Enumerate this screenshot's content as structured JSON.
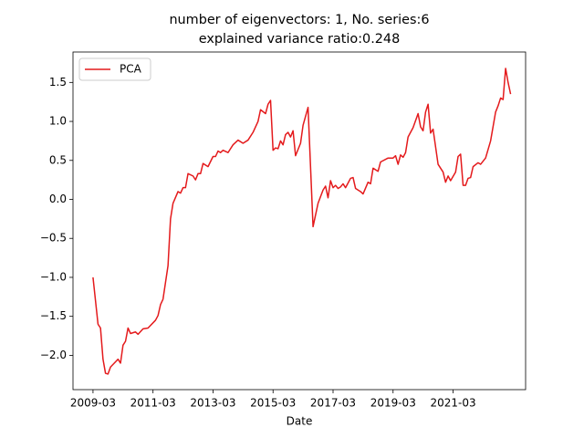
{
  "chart_data": {
    "type": "line",
    "title": [
      "number of eigenvectors: 1, No. series:6",
      "explained variance ratio:0.248"
    ],
    "xlabel": "Date",
    "legend": "upper left",
    "x": [
      "2009-03",
      "2009-05",
      "2009-06",
      "2009-07",
      "2009-08",
      "2009-09",
      "2009-10",
      "2010-01",
      "2010-02",
      "2010-03",
      "2010-04",
      "2010-05",
      "2010-06",
      "2010-08",
      "2010-09",
      "2010-11",
      "2011-01",
      "2011-04",
      "2011-05",
      "2011-06",
      "2011-07",
      "2011-09",
      "2011-10",
      "2011-11",
      "2012-01",
      "2012-02",
      "2012-03",
      "2012-04",
      "2012-05",
      "2012-07",
      "2012-08",
      "2012-09",
      "2012-10",
      "2012-11",
      "2013-01",
      "2013-03",
      "2013-04",
      "2013-05",
      "2013-06",
      "2013-07",
      "2013-09",
      "2013-11",
      "2014-01",
      "2014-03",
      "2014-05",
      "2014-07",
      "2014-09",
      "2014-10",
      "2014-12",
      "2015-01",
      "2015-02",
      "2015-03",
      "2015-04",
      "2015-05",
      "2015-06",
      "2015-07",
      "2015-08",
      "2015-09",
      "2015-10",
      "2015-11",
      "2015-12",
      "2016-02",
      "2016-03",
      "2016-05",
      "2016-07",
      "2016-09",
      "2016-11",
      "2016-12",
      "2017-01",
      "2017-02",
      "2017-03",
      "2017-04",
      "2017-05",
      "2017-06",
      "2017-07",
      "2017-08",
      "2017-10",
      "2017-11",
      "2017-12",
      "2018-02",
      "2018-03",
      "2018-05",
      "2018-06",
      "2018-07",
      "2018-09",
      "2018-10",
      "2019-01",
      "2019-03",
      "2019-04",
      "2019-05",
      "2019-06",
      "2019-07",
      "2019-08",
      "2019-09",
      "2019-11",
      "2020-01",
      "2020-02",
      "2020-03",
      "2020-04",
      "2020-05",
      "2020-06",
      "2020-07",
      "2020-09",
      "2020-11",
      "2020-12",
      "2021-01",
      "2021-02",
      "2021-04",
      "2021-05",
      "2021-06",
      "2021-07",
      "2021-08",
      "2021-09",
      "2021-10",
      "2021-11",
      "2022-01",
      "2022-02",
      "2022-04",
      "2022-06",
      "2022-08",
      "2022-09",
      "2022-10",
      "2022-11",
      "2022-12",
      "2023-01",
      "2023-02"
    ],
    "series": [
      {
        "name": "PCA",
        "color": "#e41a1c",
        "values": [
          -1.0,
          -1.6,
          -1.65,
          -2.05,
          -2.23,
          -2.24,
          -2.15,
          -2.05,
          -2.1,
          -1.87,
          -1.82,
          -1.65,
          -1.72,
          -1.7,
          -1.73,
          -1.66,
          -1.65,
          -1.55,
          -1.49,
          -1.35,
          -1.28,
          -0.85,
          -0.25,
          -0.05,
          0.1,
          0.08,
          0.15,
          0.15,
          0.33,
          0.3,
          0.25,
          0.33,
          0.33,
          0.46,
          0.42,
          0.55,
          0.55,
          0.62,
          0.6,
          0.63,
          0.6,
          0.7,
          0.76,
          0.72,
          0.76,
          0.86,
          1.0,
          1.15,
          1.1,
          1.22,
          1.27,
          0.63,
          0.66,
          0.65,
          0.75,
          0.7,
          0.83,
          0.86,
          0.8,
          0.88,
          0.56,
          0.72,
          0.95,
          1.18,
          -0.35,
          -0.05,
          0.12,
          0.17,
          0.02,
          0.24,
          0.15,
          0.18,
          0.14,
          0.16,
          0.2,
          0.15,
          0.27,
          0.28,
          0.14,
          0.1,
          0.07,
          0.22,
          0.2,
          0.4,
          0.36,
          0.48,
          0.53,
          0.53,
          0.56,
          0.45,
          0.57,
          0.54,
          0.6,
          0.8,
          0.92,
          1.1,
          0.93,
          0.88,
          1.12,
          1.22,
          0.85,
          0.9,
          0.45,
          0.35,
          0.22,
          0.3,
          0.24,
          0.35,
          0.55,
          0.58,
          0.18,
          0.18,
          0.27,
          0.28,
          0.42,
          0.47,
          0.45,
          0.53,
          0.75,
          1.12,
          1.2,
          1.3,
          1.28,
          1.68,
          1.5,
          1.35
        ]
      }
    ],
    "xlim": [
      "2008-07",
      "2023-08"
    ],
    "xticks": [
      "2009-03",
      "2011-03",
      "2013-03",
      "2015-03",
      "2017-03",
      "2019-03",
      "2021-03"
    ],
    "ylim": [
      -2.44,
      1.89
    ],
    "yticks": [
      {
        "value": -2.0,
        "label": "−2.0"
      },
      {
        "value": -1.5,
        "label": "−1.5"
      },
      {
        "value": -1.0,
        "label": "−1.0"
      },
      {
        "value": -0.5,
        "label": "−0.5"
      },
      {
        "value": 0,
        "label": "0.0"
      },
      0.5,
      {
        "value": 1.0,
        "label": "1.0"
      },
      1.5
    ]
  }
}
